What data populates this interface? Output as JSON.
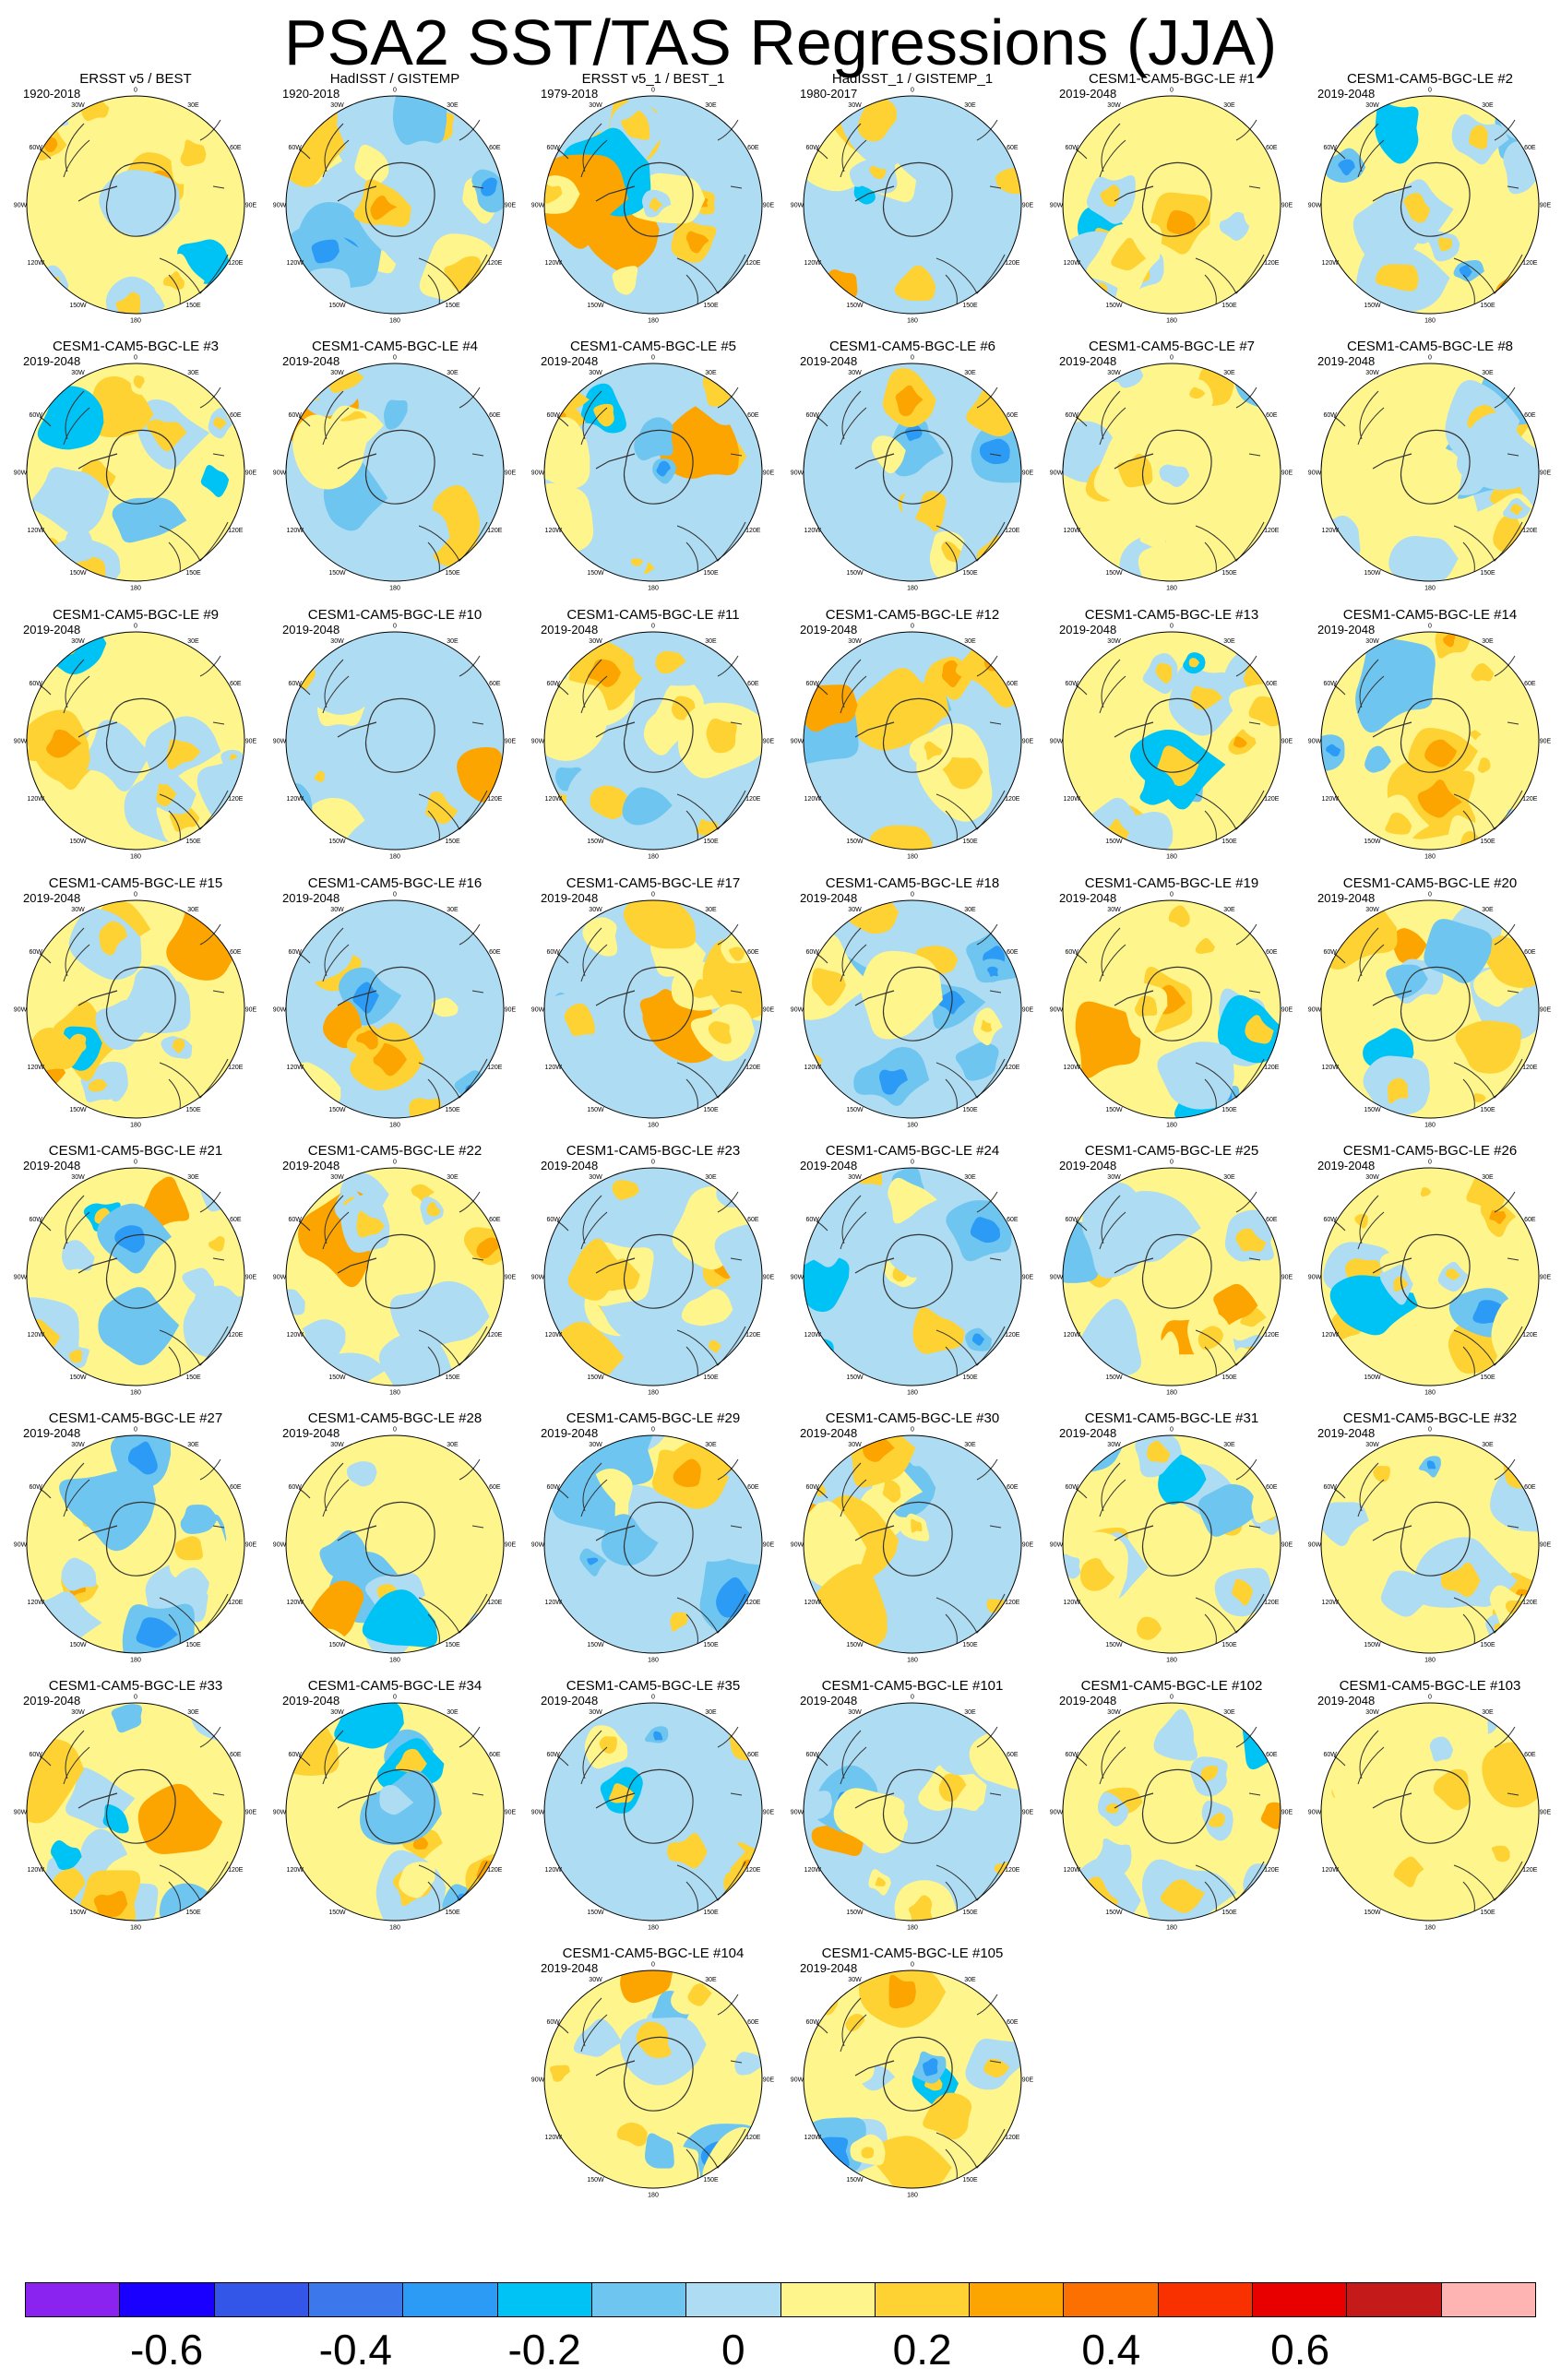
{
  "title": "PSA2 SST/TAS Regressions (JJA)",
  "longitude_labels": [
    "0",
    "30E",
    "60E",
    "90E",
    "120E",
    "150E",
    "180",
    "150W",
    "120W",
    "90W",
    "60W",
    "30W"
  ],
  "panels": [
    {
      "name": "ERSST v5 / BEST",
      "period": "1920-2018"
    },
    {
      "name": "HadISST / GISTEMP",
      "period": "1920-2018"
    },
    {
      "name": "ERSST v5_1 / BEST_1",
      "period": "1979-2018"
    },
    {
      "name": "HadISST_1 / GISTEMP_1",
      "period": "1980-2017"
    },
    {
      "name": "CESM1-CAM5-BGC-LE #1",
      "period": "2019-2048"
    },
    {
      "name": "CESM1-CAM5-BGC-LE #2",
      "period": "2019-2048"
    },
    {
      "name": "CESM1-CAM5-BGC-LE #3",
      "period": "2019-2048"
    },
    {
      "name": "CESM1-CAM5-BGC-LE #4",
      "period": "2019-2048"
    },
    {
      "name": "CESM1-CAM5-BGC-LE #5",
      "period": "2019-2048"
    },
    {
      "name": "CESM1-CAM5-BGC-LE #6",
      "period": "2019-2048"
    },
    {
      "name": "CESM1-CAM5-BGC-LE #7",
      "period": "2019-2048"
    },
    {
      "name": "CESM1-CAM5-BGC-LE #8",
      "period": "2019-2048"
    },
    {
      "name": "CESM1-CAM5-BGC-LE #9",
      "period": "2019-2048"
    },
    {
      "name": "CESM1-CAM5-BGC-LE #10",
      "period": "2019-2048"
    },
    {
      "name": "CESM1-CAM5-BGC-LE #11",
      "period": "2019-2048"
    },
    {
      "name": "CESM1-CAM5-BGC-LE #12",
      "period": "2019-2048"
    },
    {
      "name": "CESM1-CAM5-BGC-LE #13",
      "period": "2019-2048"
    },
    {
      "name": "CESM1-CAM5-BGC-LE #14",
      "period": "2019-2048"
    },
    {
      "name": "CESM1-CAM5-BGC-LE #15",
      "period": "2019-2048"
    },
    {
      "name": "CESM1-CAM5-BGC-LE #16",
      "period": "2019-2048"
    },
    {
      "name": "CESM1-CAM5-BGC-LE #17",
      "period": "2019-2048"
    },
    {
      "name": "CESM1-CAM5-BGC-LE #18",
      "period": "2019-2048"
    },
    {
      "name": "CESM1-CAM5-BGC-LE #19",
      "period": "2019-2048"
    },
    {
      "name": "CESM1-CAM5-BGC-LE #20",
      "period": "2019-2048"
    },
    {
      "name": "CESM1-CAM5-BGC-LE #21",
      "period": "2019-2048"
    },
    {
      "name": "CESM1-CAM5-BGC-LE #22",
      "period": "2019-2048"
    },
    {
      "name": "CESM1-CAM5-BGC-LE #23",
      "period": "2019-2048"
    },
    {
      "name": "CESM1-CAM5-BGC-LE #24",
      "period": "2019-2048"
    },
    {
      "name": "CESM1-CAM5-BGC-LE #25",
      "period": "2019-2048"
    },
    {
      "name": "CESM1-CAM5-BGC-LE #26",
      "period": "2019-2048"
    },
    {
      "name": "CESM1-CAM5-BGC-LE #27",
      "period": "2019-2048"
    },
    {
      "name": "CESM1-CAM5-BGC-LE #28",
      "period": "2019-2048"
    },
    {
      "name": "CESM1-CAM5-BGC-LE #29",
      "period": "2019-2048"
    },
    {
      "name": "CESM1-CAM5-BGC-LE #30",
      "period": "2019-2048"
    },
    {
      "name": "CESM1-CAM5-BGC-LE #31",
      "period": "2019-2048"
    },
    {
      "name": "CESM1-CAM5-BGC-LE #32",
      "period": "2019-2048"
    },
    {
      "name": "CESM1-CAM5-BGC-LE #33",
      "period": "2019-2048"
    },
    {
      "name": "CESM1-CAM5-BGC-LE #34",
      "period": "2019-2048"
    },
    {
      "name": "CESM1-CAM5-BGC-LE #35",
      "period": "2019-2048"
    },
    {
      "name": "CESM1-CAM5-BGC-LE #101",
      "period": "2019-2048"
    },
    {
      "name": "CESM1-CAM5-BGC-LE #102",
      "period": "2019-2048"
    },
    {
      "name": "CESM1-CAM5-BGC-LE #103",
      "period": "2019-2048"
    },
    {
      "name": "CESM1-CAM5-BGC-LE #104",
      "period": "2019-2048"
    },
    {
      "name": "CESM1-CAM5-BGC-LE #105",
      "period": "2019-2048"
    }
  ],
  "colorbar": {
    "colors": [
      "#8a22f0",
      "#1a00ff",
      "#3355e8",
      "#3c78ec",
      "#2b9bf5",
      "#00c3f5",
      "#6ec6f0",
      "#aedcf2",
      "#fef58c",
      "#fdd232",
      "#fca500",
      "#fb7000",
      "#f93000",
      "#e80000",
      "#c41a1a",
      "#ffb4b4"
    ],
    "labels": [
      "-0.6",
      "-0.4",
      "-0.2",
      "0",
      "0.2",
      "0.4",
      "0.6"
    ],
    "boundary_values": [
      -0.6,
      -0.4,
      -0.2,
      0,
      0.2,
      0.4,
      0.6
    ],
    "min": -0.75,
    "max": 0.85
  }
}
